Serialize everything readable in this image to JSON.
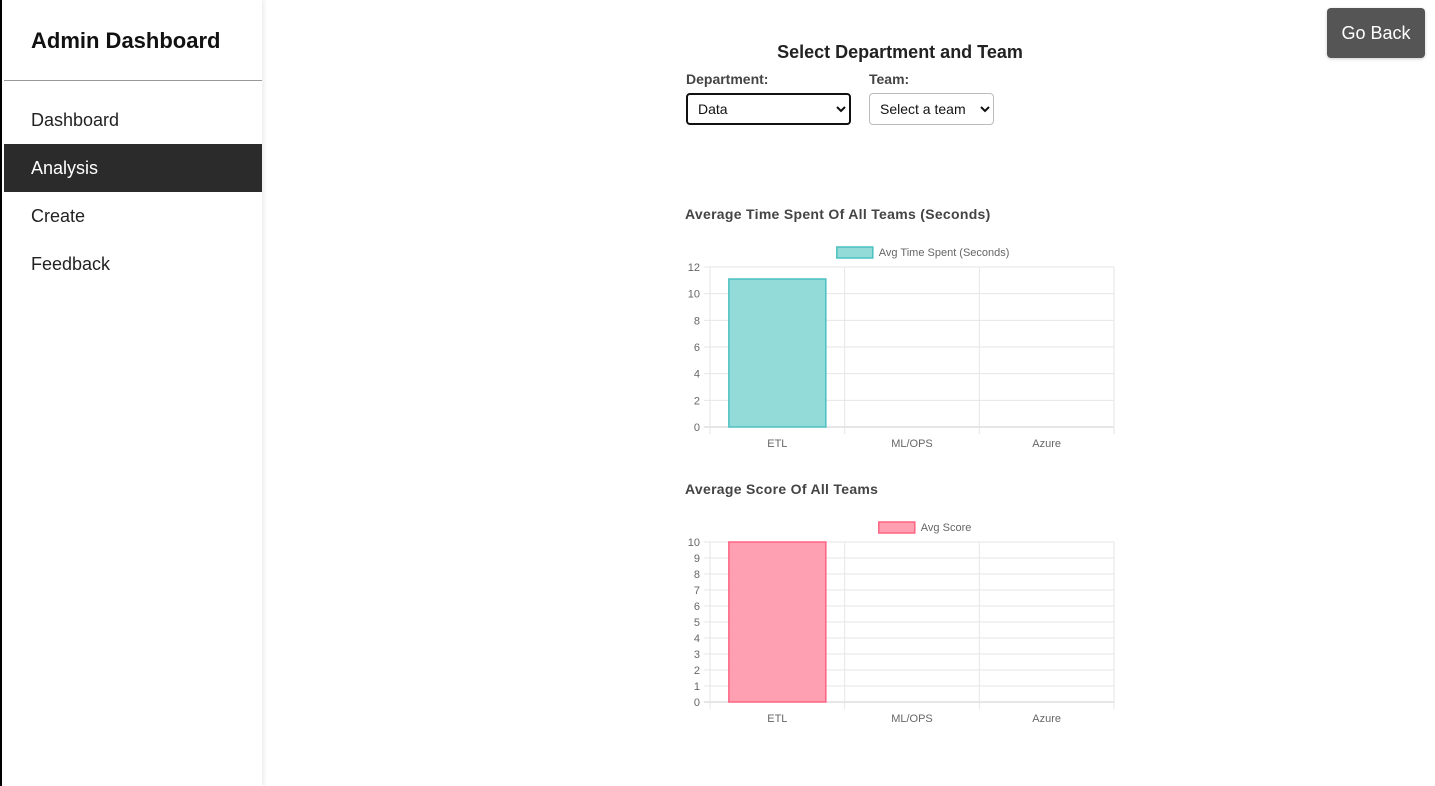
{
  "sidebar": {
    "title": "Admin Dashboard",
    "items": [
      {
        "label": "Dashboard",
        "active": false
      },
      {
        "label": "Analysis",
        "active": true
      },
      {
        "label": "Create",
        "active": false
      },
      {
        "label": "Feedback",
        "active": false
      }
    ]
  },
  "header": {
    "go_back_label": "Go Back"
  },
  "selector": {
    "title": "Select Department and Team",
    "department_label": "Department:",
    "department_value": "Data",
    "team_label": "Team:",
    "team_value": "Select a team"
  },
  "colors": {
    "sidebar_active": "#2b2b2b",
    "teal_fill": "#93dbd8",
    "teal_border": "#4bc0c0",
    "pink_fill": "#ff9fb2",
    "pink_border": "#ff6384"
  },
  "chart_data": [
    {
      "type": "bar",
      "title": "Average Time Spent Of All Teams (Seconds)",
      "categories": [
        "ETL",
        "ML/OPS",
        "Azure"
      ],
      "series": [
        {
          "name": "Avg Time Spent (Seconds)",
          "values": [
            11.1,
            0,
            0
          ]
        }
      ],
      "ylim": [
        0,
        12
      ],
      "yticks": [
        0,
        2,
        4,
        6,
        8,
        10,
        12
      ],
      "grid": true,
      "legend": "top"
    },
    {
      "type": "bar",
      "title": "Average Score Of All Teams",
      "categories": [
        "ETL",
        "ML/OPS",
        "Azure"
      ],
      "series": [
        {
          "name": "Avg Score",
          "values": [
            10,
            0,
            0
          ]
        }
      ],
      "ylim": [
        0,
        10
      ],
      "yticks": [
        0,
        1,
        2,
        3,
        4,
        5,
        6,
        7,
        8,
        9,
        10
      ],
      "grid": true,
      "legend": "top"
    }
  ]
}
